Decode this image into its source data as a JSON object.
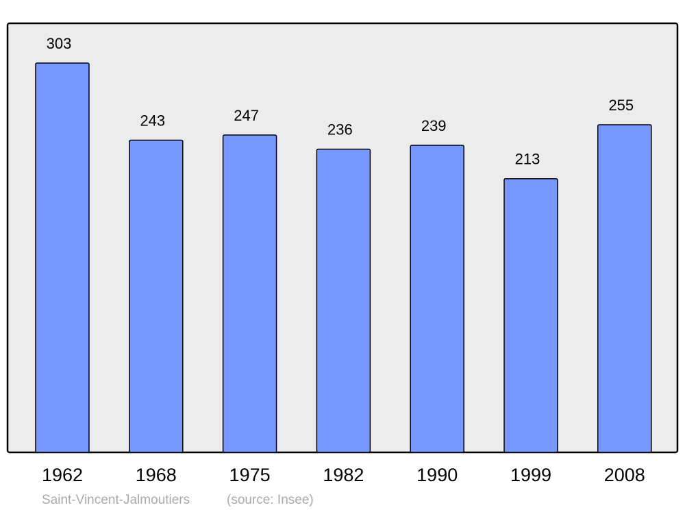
{
  "chart_data": {
    "type": "bar",
    "caption": "Saint-Vincent-Jalmoutiers",
    "source": "(source: Insee)",
    "categories": [
      "1962",
      "1968",
      "1975",
      "1982",
      "1990",
      "1999",
      "2008"
    ],
    "values": [
      303,
      243,
      247,
      236,
      239,
      213,
      255
    ],
    "color": "#7799ff"
  }
}
